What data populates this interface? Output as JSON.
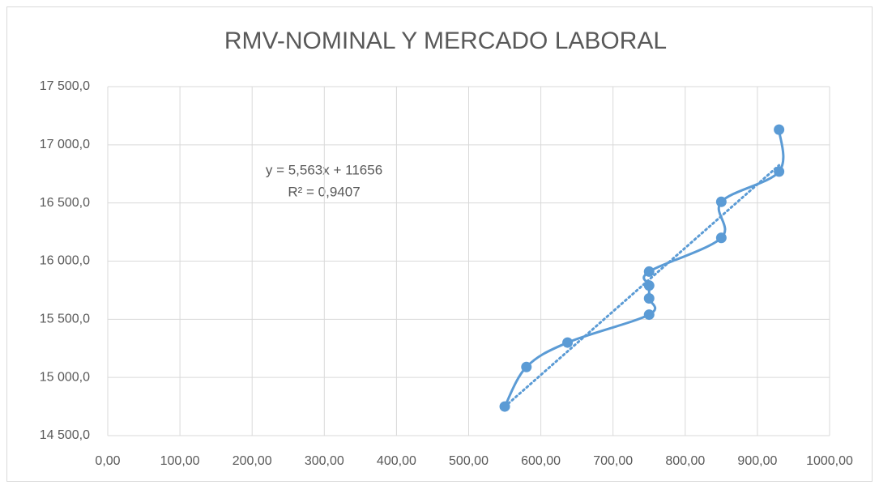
{
  "chart_data": {
    "type": "scatter",
    "title": "RMV-NOMINAL Y MERCADO LABORAL",
    "series": [
      {
        "name": "RMV-NOMINAL",
        "color": "#5b9bd5",
        "x": [
          550,
          580,
          637,
          750,
          750,
          750,
          750,
          850,
          850,
          930,
          930
        ],
        "values": [
          14750,
          15090,
          15300,
          15540,
          15680,
          15790,
          15910,
          16200,
          16510,
          16770,
          17130
        ]
      }
    ],
    "trendline": {
      "equation": "y = 5,563x + 11656",
      "r_squared": "R² = 0,9407"
    },
    "xlim": [
      0,
      1000
    ],
    "xticks": [
      {
        "value": 0,
        "label": "0,00"
      },
      {
        "value": 100,
        "label": "100,00"
      },
      {
        "value": 200,
        "label": "200,00"
      },
      {
        "value": 300,
        "label": "300,00"
      },
      {
        "value": 400,
        "label": "400,00"
      },
      {
        "value": 500,
        "label": "500,00"
      },
      {
        "value": 600,
        "label": "600,00"
      },
      {
        "value": 700,
        "label": "700,00"
      },
      {
        "value": 800,
        "label": "800,00"
      },
      {
        "value": 900,
        "label": "900,00"
      },
      {
        "value": 1000,
        "label": "1000,00"
      }
    ],
    "ylim": [
      14500,
      17500
    ],
    "yticks": [
      {
        "value": 14500,
        "label": "14 500,0"
      },
      {
        "value": 15000,
        "label": "15 000,0"
      },
      {
        "value": 15500,
        "label": "15 500,0"
      },
      {
        "value": 16000,
        "label": "16 000,0"
      },
      {
        "value": 16500,
        "label": "16 500,0"
      },
      {
        "value": 17000,
        "label": "17 000,0"
      },
      {
        "value": 17500,
        "label": "17 500,0"
      }
    ],
    "grid": true
  }
}
